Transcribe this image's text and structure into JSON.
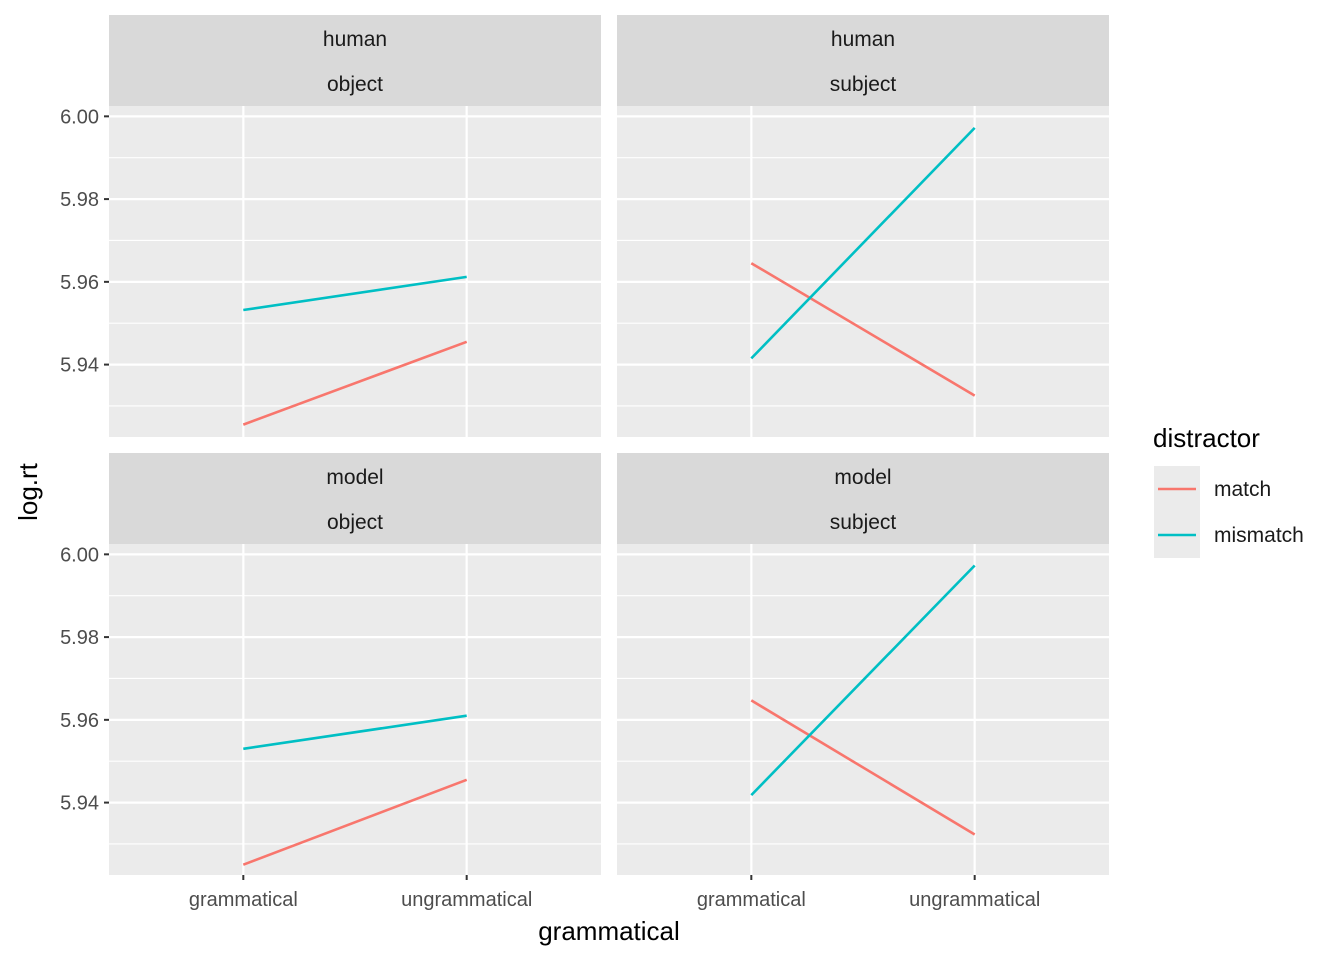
{
  "chart_data": {
    "type": "line",
    "xlabel": "grammatical",
    "ylabel": "log.rt",
    "categories": [
      "grammatical",
      "ungrammatical"
    ],
    "ylim": [
      5.9225,
      6.0025
    ],
    "yticks": [
      "5.94",
      "5.96",
      "5.98",
      "6.00"
    ],
    "grid": true,
    "colors": {
      "match": "#F8766D",
      "mismatch": "#00BFC4"
    },
    "legend": {
      "title": "distractor",
      "position": "right",
      "entries": [
        "match",
        "mismatch"
      ]
    },
    "facets": [
      {
        "strip": [
          "human",
          "object"
        ],
        "series": [
          {
            "name": "match",
            "values": [
              5.9255,
              5.9455
            ]
          },
          {
            "name": "mismatch",
            "values": [
              5.9532,
              5.9612
            ]
          }
        ]
      },
      {
        "strip": [
          "human",
          "subject"
        ],
        "series": [
          {
            "name": "match",
            "values": [
              5.9645,
              5.9325
            ]
          },
          {
            "name": "mismatch",
            "values": [
              5.9415,
              5.9972
            ]
          }
        ]
      },
      {
        "strip": [
          "model",
          "object"
        ],
        "series": [
          {
            "name": "match",
            "values": [
              5.925,
              5.9455
            ]
          },
          {
            "name": "mismatch",
            "values": [
              5.953,
              5.961
            ]
          }
        ]
      },
      {
        "strip": [
          "model",
          "subject"
        ],
        "series": [
          {
            "name": "match",
            "values": [
              5.9647,
              5.9323
            ]
          },
          {
            "name": "mismatch",
            "values": [
              5.9418,
              5.9973
            ]
          }
        ]
      }
    ]
  }
}
